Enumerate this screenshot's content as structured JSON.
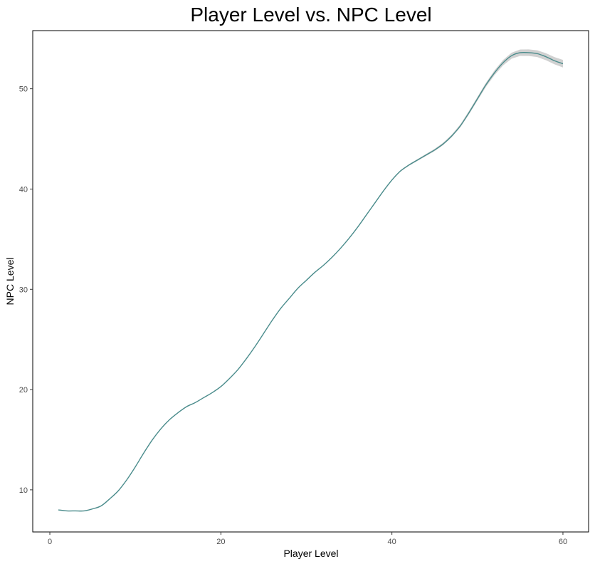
{
  "chart_data": {
    "type": "line",
    "title": "Player Level vs. NPC Level",
    "xlabel": "Player Level",
    "ylabel": "NPC Level",
    "xlim": [
      -2,
      63
    ],
    "ylim": [
      5.8,
      55.8
    ],
    "x_ticks": [
      "0",
      "20",
      "40",
      "60"
    ],
    "y_ticks": [
      "10",
      "20",
      "30",
      "40",
      "50"
    ],
    "grid": false,
    "legend": "none",
    "colors": {
      "line": "#4a8c8c",
      "ribbon": "#b3b3b3",
      "frame": "#000000"
    },
    "series": [
      {
        "x": [
          1,
          2,
          3,
          4,
          5,
          6,
          7,
          8,
          9,
          10,
          11,
          12,
          13,
          14,
          15,
          16,
          17,
          18,
          19,
          20,
          21,
          22,
          23,
          24,
          25,
          26,
          27,
          28,
          29,
          30,
          31,
          32,
          33,
          34,
          35,
          36,
          37,
          38,
          39,
          40,
          41,
          42,
          43,
          44,
          45,
          46,
          47,
          48,
          49,
          50,
          51,
          52,
          53,
          54,
          55,
          56,
          57,
          58,
          59,
          60
        ],
        "y": [
          8.0,
          7.9,
          7.9,
          7.9,
          8.1,
          8.4,
          9.1,
          9.9,
          11.0,
          12.3,
          13.7,
          15.0,
          16.1,
          17.0,
          17.7,
          18.3,
          18.7,
          19.2,
          19.7,
          20.3,
          21.1,
          22.0,
          23.1,
          24.3,
          25.6,
          26.9,
          28.1,
          29.1,
          30.1,
          30.9,
          31.7,
          32.4,
          33.2,
          34.1,
          35.1,
          36.2,
          37.4,
          38.6,
          39.8,
          40.9,
          41.8,
          42.4,
          42.9,
          43.4,
          43.9,
          44.5,
          45.3,
          46.3,
          47.6,
          49.0,
          50.4,
          51.6,
          52.6,
          53.3,
          53.6,
          53.6,
          53.5,
          53.2,
          52.8,
          52.5
        ],
        "ci_halfwidth": [
          0.05,
          0.04,
          0.04,
          0.04,
          0.04,
          0.04,
          0.04,
          0.04,
          0.04,
          0.04,
          0.04,
          0.04,
          0.04,
          0.04,
          0.04,
          0.04,
          0.04,
          0.04,
          0.04,
          0.04,
          0.04,
          0.04,
          0.04,
          0.04,
          0.04,
          0.04,
          0.04,
          0.04,
          0.04,
          0.04,
          0.04,
          0.04,
          0.04,
          0.04,
          0.05,
          0.05,
          0.05,
          0.06,
          0.06,
          0.07,
          0.07,
          0.08,
          0.09,
          0.1,
          0.11,
          0.12,
          0.13,
          0.15,
          0.17,
          0.19,
          0.21,
          0.24,
          0.27,
          0.3,
          0.32,
          0.33,
          0.34,
          0.35,
          0.36,
          0.38
        ]
      }
    ]
  }
}
